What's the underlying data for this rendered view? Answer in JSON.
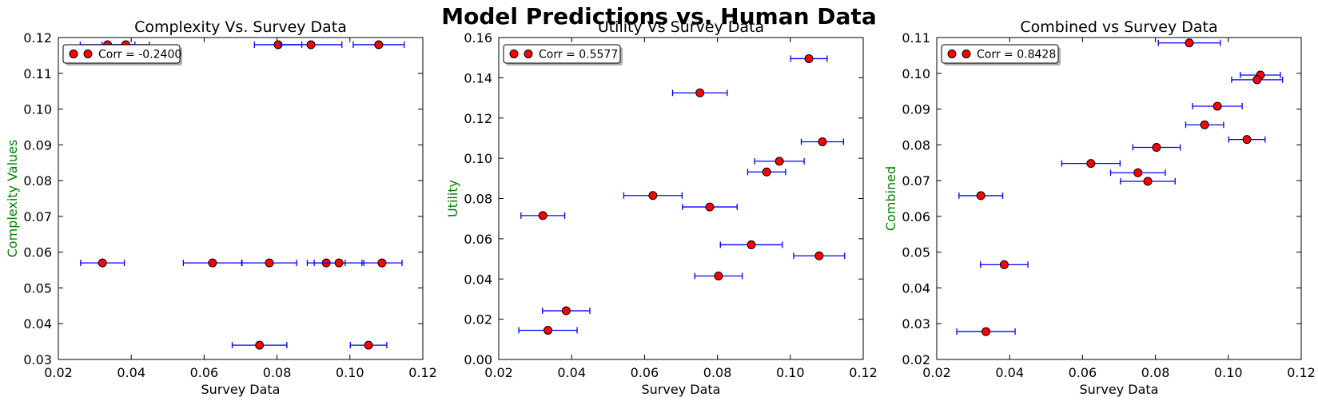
{
  "figure_title": "Model Predictions vs. Human Data",
  "colors": {
    "error_bar": "#0000ff",
    "marker": "#ff0000",
    "ylabel": "#008000"
  },
  "chart_data": [
    {
      "type": "scatter",
      "title": "Complexity Vs. Survey Data",
      "xlabel": "Survey Data",
      "ylabel": "Complexity Values",
      "xlim": [
        0.02,
        0.12
      ],
      "ylim": [
        0.03,
        0.12
      ],
      "xticks": [
        "0.02",
        "0.04",
        "0.06",
        "0.08",
        "0.10",
        "0.12"
      ],
      "yticks": [
        "0.03",
        "0.04",
        "0.05",
        "0.06",
        "0.07",
        "0.08",
        "0.09",
        "0.10",
        "0.11",
        "0.12"
      ],
      "legend": "Corr = -0.2400",
      "legend_position": "top-left",
      "points": [
        {
          "x": 0.0335,
          "y": 0.118,
          "xerr": 0.0075
        },
        {
          "x": 0.0385,
          "y": 0.118,
          "xerr": 0.0065
        },
        {
          "x": 0.0803,
          "y": 0.118,
          "xerr": 0.0065
        },
        {
          "x": 0.0893,
          "y": 0.118,
          "xerr": 0.0085
        },
        {
          "x": 0.1079,
          "y": 0.118,
          "xerr": 0.007
        },
        {
          "x": 0.0321,
          "y": 0.057,
          "xerr": 0.006
        },
        {
          "x": 0.0623,
          "y": 0.057,
          "xerr": 0.008
        },
        {
          "x": 0.0779,
          "y": 0.057,
          "xerr": 0.0075
        },
        {
          "x": 0.0935,
          "y": 0.057,
          "xerr": 0.0052
        },
        {
          "x": 0.097,
          "y": 0.057,
          "xerr": 0.0068
        },
        {
          "x": 0.1088,
          "y": 0.057,
          "xerr": 0.0055
        },
        {
          "x": 0.0752,
          "y": 0.034,
          "xerr": 0.0075
        },
        {
          "x": 0.1051,
          "y": 0.034,
          "xerr": 0.005
        }
      ]
    },
    {
      "type": "scatter",
      "title": "Utility Vs Survey Data",
      "xlabel": "Survey Data",
      "ylabel": "Utility",
      "xlim": [
        0.02,
        0.12
      ],
      "ylim": [
        0.0,
        0.16
      ],
      "xticks": [
        "0.02",
        "0.04",
        "0.06",
        "0.08",
        "0.10",
        "0.12"
      ],
      "yticks": [
        "0.00",
        "0.02",
        "0.04",
        "0.06",
        "0.08",
        "0.10",
        "0.12",
        "0.14",
        "0.16"
      ],
      "legend": "Corr = 0.5577",
      "legend_position": "top-left",
      "points": [
        {
          "x": 0.1051,
          "y": 0.1495,
          "xerr": 0.005
        },
        {
          "x": 0.0752,
          "y": 0.1325,
          "xerr": 0.0075
        },
        {
          "x": 0.1088,
          "y": 0.1082,
          "xerr": 0.0058
        },
        {
          "x": 0.097,
          "y": 0.0985,
          "xerr": 0.0068
        },
        {
          "x": 0.0935,
          "y": 0.0932,
          "xerr": 0.0052
        },
        {
          "x": 0.0623,
          "y": 0.0815,
          "xerr": 0.008
        },
        {
          "x": 0.0779,
          "y": 0.0758,
          "xerr": 0.0075
        },
        {
          "x": 0.0321,
          "y": 0.0715,
          "xerr": 0.006
        },
        {
          "x": 0.0893,
          "y": 0.057,
          "xerr": 0.0085
        },
        {
          "x": 0.1079,
          "y": 0.0515,
          "xerr": 0.007
        },
        {
          "x": 0.0803,
          "y": 0.0415,
          "xerr": 0.0065
        },
        {
          "x": 0.0385,
          "y": 0.0242,
          "xerr": 0.0065
        },
        {
          "x": 0.0335,
          "y": 0.0145,
          "xerr": 0.008
        }
      ]
    },
    {
      "type": "scatter",
      "title": "Combined vs Survey Data",
      "xlabel": "Survey Data",
      "ylabel": "Combined",
      "xlim": [
        0.02,
        0.12
      ],
      "ylim": [
        0.02,
        0.11
      ],
      "xticks": [
        "0.02",
        "0.04",
        "0.06",
        "0.08",
        "0.10",
        "0.12"
      ],
      "yticks": [
        "0.02",
        "0.03",
        "0.04",
        "0.05",
        "0.06",
        "0.07",
        "0.08",
        "0.09",
        "0.10",
        "0.11"
      ],
      "legend": "Corr = 0.8428",
      "legend_position": "top-left",
      "points": [
        {
          "x": 0.0893,
          "y": 0.1085,
          "xerr": 0.0085
        },
        {
          "x": 0.1088,
          "y": 0.0995,
          "xerr": 0.0055
        },
        {
          "x": 0.1079,
          "y": 0.0982,
          "xerr": 0.007
        },
        {
          "x": 0.097,
          "y": 0.0908,
          "xerr": 0.0068
        },
        {
          "x": 0.0935,
          "y": 0.0856,
          "xerr": 0.0052
        },
        {
          "x": 0.1051,
          "y": 0.0815,
          "xerr": 0.005
        },
        {
          "x": 0.0803,
          "y": 0.0793,
          "xerr": 0.0065
        },
        {
          "x": 0.0623,
          "y": 0.0748,
          "xerr": 0.008
        },
        {
          "x": 0.0752,
          "y": 0.0722,
          "xerr": 0.0075
        },
        {
          "x": 0.0779,
          "y": 0.0698,
          "xerr": 0.0075
        },
        {
          "x": 0.0321,
          "y": 0.0658,
          "xerr": 0.006
        },
        {
          "x": 0.0385,
          "y": 0.0465,
          "xerr": 0.0065
        },
        {
          "x": 0.0335,
          "y": 0.0278,
          "xerr": 0.008
        }
      ]
    }
  ]
}
